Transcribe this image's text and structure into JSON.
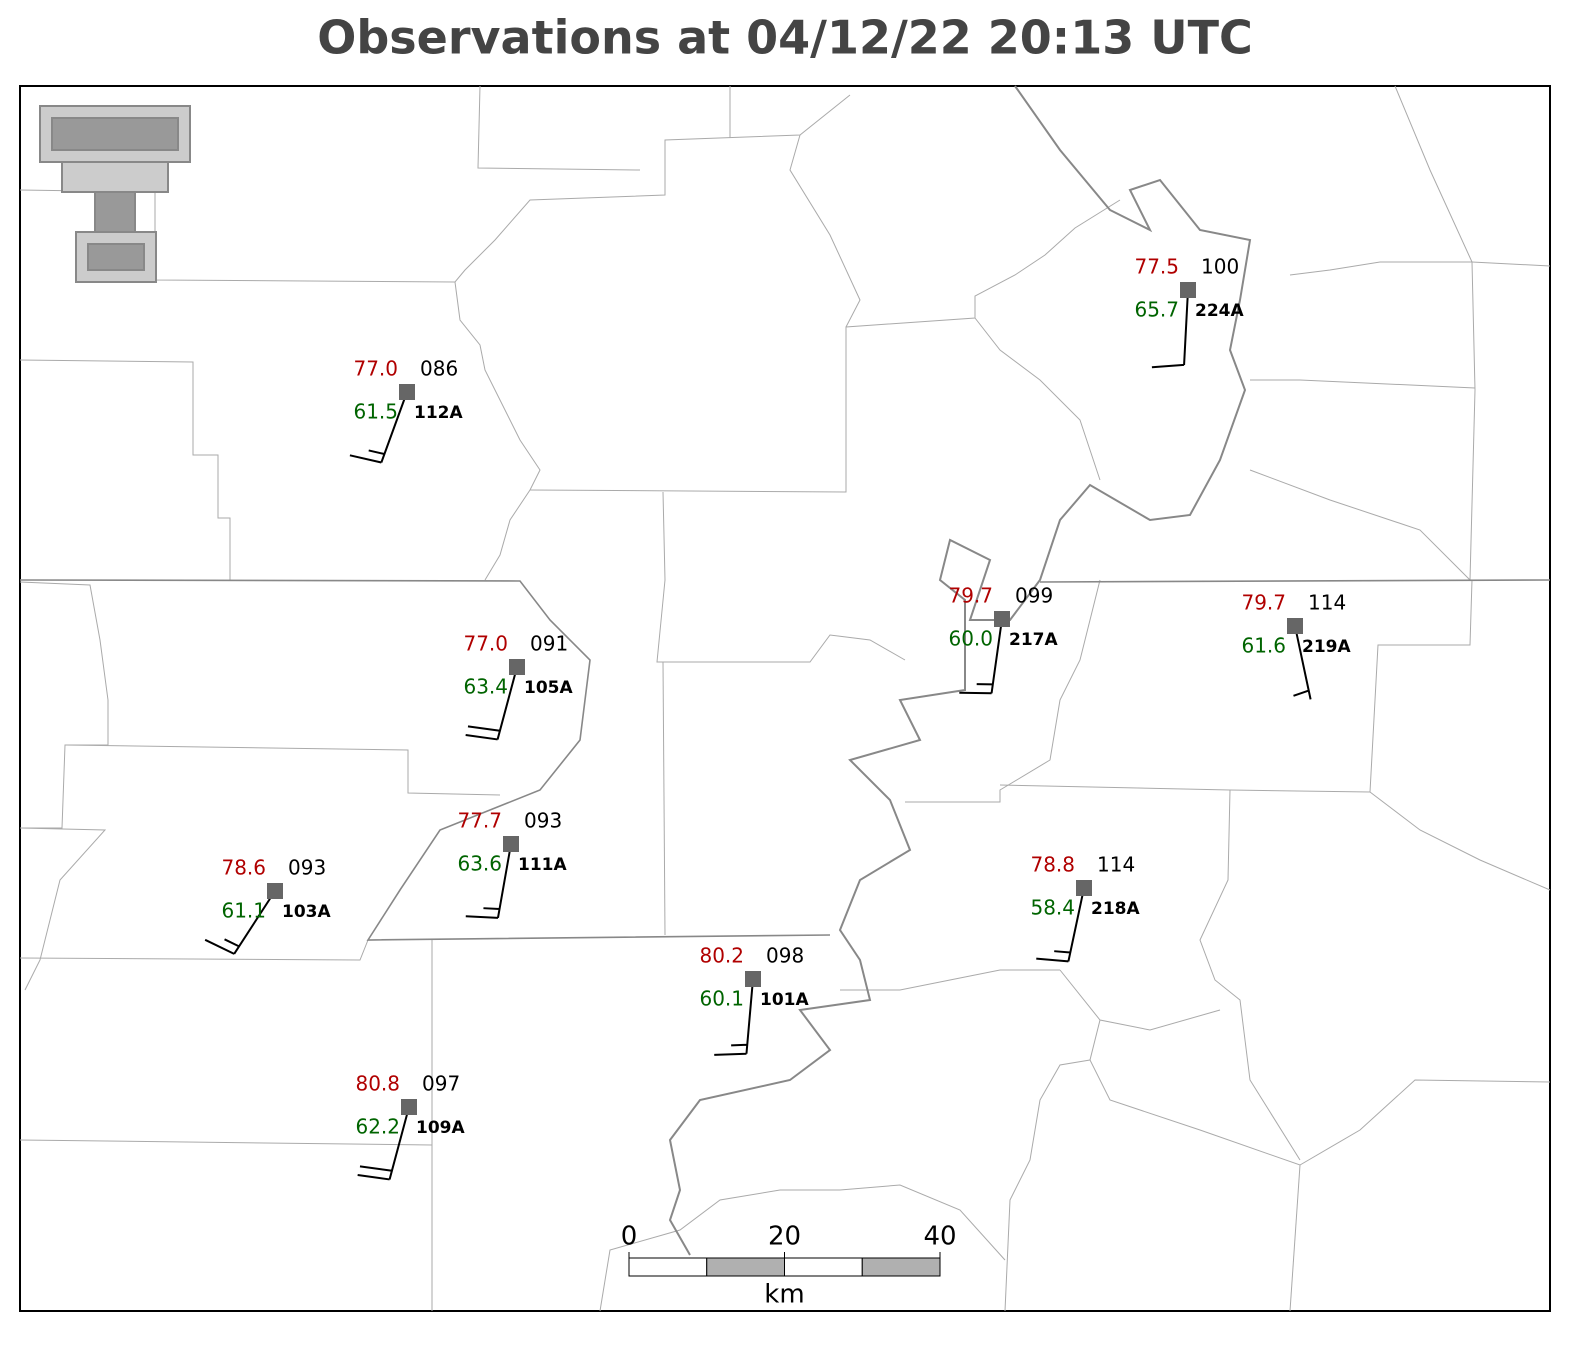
{
  "title": "Observations at 04/12/22 20:13 UTC",
  "stations": [
    {
      "id": "112A",
      "temperature": "77.0",
      "dewpoint": "61.5",
      "pressure": "086",
      "wind_direction": 200,
      "wind_speed": 15
    },
    {
      "id": "105A",
      "temperature": "77.0",
      "dewpoint": "63.4",
      "pressure": "091",
      "wind_direction": 195,
      "wind_speed": 20
    },
    {
      "id": "111A",
      "temperature": "77.7",
      "dewpoint": "63.6",
      "pressure": "093",
      "wind_direction": 190,
      "wind_speed": 15
    },
    {
      "id": "103A",
      "temperature": "78.6",
      "dewpoint": "61.1",
      "pressure": "093",
      "wind_direction": 213,
      "wind_speed": 15
    },
    {
      "id": "109A",
      "temperature": "80.8",
      "dewpoint": "62.2",
      "pressure": "097",
      "wind_direction": 195,
      "wind_speed": 20
    },
    {
      "id": "101A",
      "temperature": "80.2",
      "dewpoint": "60.1",
      "pressure": "098",
      "wind_direction": 185,
      "wind_speed": 15
    },
    {
      "id": "217A",
      "temperature": "79.7",
      "dewpoint": "60.0",
      "pressure": "099",
      "wind_direction": 188,
      "wind_speed": 15
    },
    {
      "id": "224A",
      "temperature": "77.5",
      "dewpoint": "65.7",
      "pressure": "100",
      "wind_direction": 183,
      "wind_speed": 10
    },
    {
      "id": "219A",
      "temperature": "79.7",
      "dewpoint": "61.6",
      "pressure": "114",
      "wind_direction": 168,
      "wind_speed": 5
    },
    {
      "id": "218A",
      "temperature": "78.8",
      "dewpoint": "58.4",
      "pressure": "114",
      "wind_direction": 192,
      "wind_speed": 15
    }
  ],
  "scale_bar": {
    "ticks": [
      0,
      20,
      40
    ],
    "unit": "km"
  }
}
